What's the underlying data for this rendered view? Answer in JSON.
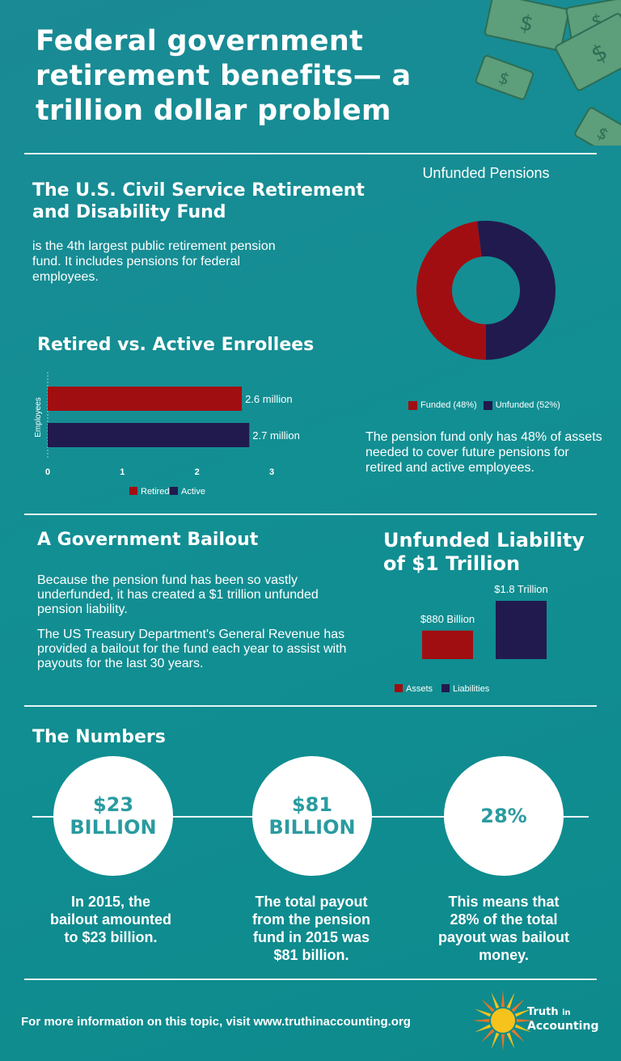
{
  "title": "Federal government retirement benefits— a trillion dollar problem",
  "csrdf": {
    "heading": "The U.S. Civil Service Retirement and Disability Fund",
    "text": "is the 4th largest public retirement pension fund. It includes pensions for federal employees."
  },
  "enrollees": {
    "heading": "Retired vs. Active Enrollees"
  },
  "pension": {
    "text": "The pension fund only has 48% of assets needed to cover future pensions for retired and active employees."
  },
  "bailout": {
    "heading": "A Government Bailout",
    "p1": "Because the pension fund has been so vastly underfunded, it has created a $1 trillion unfunded pension liability.",
    "p2": "The US Treasury Department's General Revenue has provided a bailout for the fund each year to assist with payouts for the last 30 years."
  },
  "liability": {
    "heading": "Unfunded Liability of $1 Trillion"
  },
  "numbers": {
    "heading": "The Numbers",
    "items": [
      {
        "big": "$23 BILLION",
        "desc": "In 2015, the bailout amounted to $23 billion."
      },
      {
        "big": "$81 BILLION",
        "desc": "The total payout from the pension fund in 2015 was $81 billion."
      },
      {
        "big": "28%",
        "desc": "This means that 28% of the total payout was bailout money."
      }
    ]
  },
  "footer": {
    "text": "For more information on this topic, visit www.truthinaccounting.org",
    "logo_line1a": "Truth",
    "logo_line1b": "in",
    "logo_line2": "Accounting"
  },
  "colors": {
    "red": "#a10e12",
    "navy": "#211a4e",
    "bg": "#128f93"
  },
  "chart_data": [
    {
      "type": "pie",
      "title": "Unfunded Pensions",
      "categories": [
        "Funded (48%)",
        "Unfunded (52%)"
      ],
      "values": [
        48,
        52
      ],
      "colors": [
        "#a10e12",
        "#211a4e"
      ],
      "donut": true,
      "legend": "bottom"
    },
    {
      "type": "bar",
      "orientation": "horizontal",
      "ylabel": "Employees",
      "xlim": [
        0,
        3
      ],
      "xticks": [
        "0",
        "1",
        "2",
        "3"
      ],
      "series": [
        {
          "name": "Retired",
          "values": [
            2.6
          ],
          "label": "2.6 million",
          "color": "#a10e12"
        },
        {
          "name": "Active",
          "values": [
            2.7
          ],
          "label": "2.7 million",
          "color": "#211a4e"
        }
      ],
      "legend": "bottom"
    },
    {
      "type": "bar",
      "series": [
        {
          "name": "Assets",
          "values": [
            0.88
          ],
          "label": "$880 Billion",
          "color": "#a10e12"
        },
        {
          "name": "Liabilities",
          "values": [
            1.8
          ],
          "label": "$1.8 Trillion",
          "color": "#211a4e"
        }
      ],
      "legend": "bottom"
    }
  ]
}
